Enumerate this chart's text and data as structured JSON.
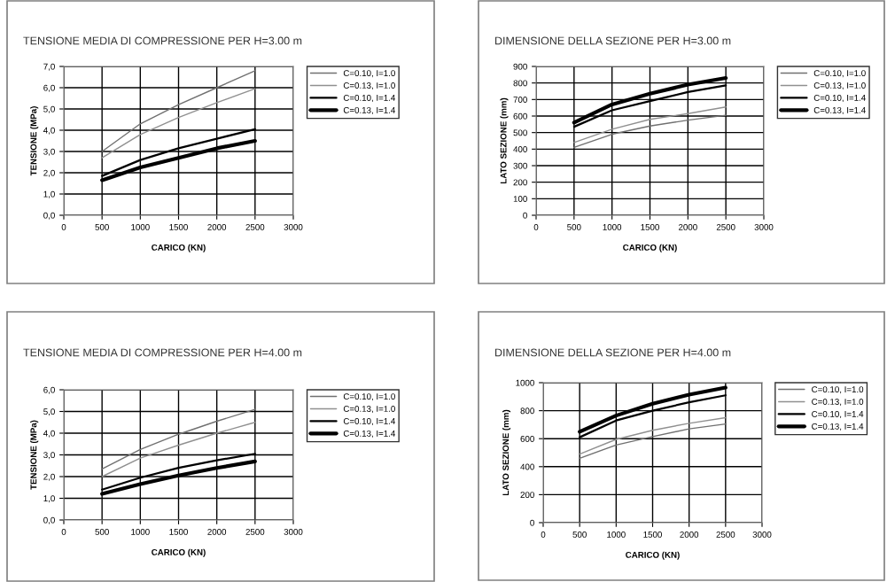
{
  "chart_data": [
    {
      "type": "line",
      "title": "TENSIONE MEDIA DI COMPRESSIONE PER H=3.00 m",
      "xlabel": "CARICO (KN)",
      "ylabel": "TENSIONE (MPa)",
      "x": [
        500,
        1000,
        1500,
        2000,
        2500
      ],
      "xlim": [
        0,
        3000
      ],
      "xticks": [
        0,
        500,
        1000,
        1500,
        2000,
        2500,
        3000
      ],
      "ylim": [
        0,
        7
      ],
      "yticks": [
        {
          "value": 0,
          "label": "0,0"
        },
        {
          "value": 1,
          "label": "1,0"
        },
        {
          "value": 2,
          "label": "2,0"
        },
        {
          "value": 3,
          "label": "3,0"
        },
        {
          "value": 4,
          "label": "4,0"
        },
        {
          "value": 5,
          "label": "5,0"
        },
        {
          "value": 6,
          "label": "6,0"
        },
        {
          "value": 7,
          "label": "7,0"
        }
      ],
      "grid": true,
      "legend": "right",
      "series": [
        {
          "name": "C=0.10, I=1.0",
          "color": "#707070",
          "values": [
            3.0,
            4.3,
            5.2,
            6.0,
            6.8
          ]
        },
        {
          "name": "C=0.13, I=1.0",
          "color": "#909090",
          "values": [
            2.7,
            3.8,
            4.6,
            5.3,
            5.95
          ]
        },
        {
          "name": "C=0.10, I=1.4",
          "color": "#000000",
          "values": [
            1.85,
            2.6,
            3.15,
            3.6,
            4.05
          ]
        },
        {
          "name": "C=0.13, I=1.4",
          "color": "#000000",
          "values": [
            1.65,
            2.25,
            2.7,
            3.15,
            3.5
          ]
        }
      ]
    },
    {
      "type": "line",
      "title": "DIMENSIONE DELLA SEZIONE PER H=3.00 m",
      "xlabel": "CARICO (KN)",
      "ylabel": "LATO SEZIONE (mm)",
      "x": [
        500,
        1000,
        1500,
        2000,
        2500
      ],
      "xlim": [
        0,
        3000
      ],
      "xticks": [
        0,
        500,
        1000,
        1500,
        2000,
        2500,
        3000
      ],
      "ylim": [
        0,
        900
      ],
      "yticks": [
        0,
        100,
        200,
        300,
        400,
        500,
        600,
        700,
        800,
        900
      ],
      "grid": true,
      "legend": "right",
      "series": [
        {
          "name": "C=0.10, I=1.0",
          "color": "#707070",
          "values": [
            410,
            490,
            540,
            575,
            605
          ]
        },
        {
          "name": "C=0.13, I=1.0",
          "color": "#909090",
          "values": [
            440,
            520,
            580,
            615,
            655
          ]
        },
        {
          "name": "C=0.10, I=1.4",
          "color": "#000000",
          "values": [
            535,
            635,
            690,
            745,
            785
          ]
        },
        {
          "name": "C=0.13, I=1.4",
          "color": "#000000",
          "values": [
            560,
            670,
            735,
            790,
            830
          ]
        }
      ]
    },
    {
      "type": "line",
      "title": "TENSIONE MEDIA DI COMPRESSIONE PER H=4.00 m",
      "xlabel": "CARICO (KN)",
      "ylabel": "TENSIONE (MPa)",
      "x": [
        500,
        1000,
        1500,
        2000,
        2500
      ],
      "xlim": [
        0,
        3000
      ],
      "xticks": [
        0,
        500,
        1000,
        1500,
        2000,
        2500,
        3000
      ],
      "ylim": [
        0,
        6
      ],
      "yticks": [
        {
          "value": 0,
          "label": "0,0"
        },
        {
          "value": 1,
          "label": "1,0"
        },
        {
          "value": 2,
          "label": "2,0"
        },
        {
          "value": 3,
          "label": "3,0"
        },
        {
          "value": 4,
          "label": "4,0"
        },
        {
          "value": 5,
          "label": "5,0"
        },
        {
          "value": 6,
          "label": "6,0"
        }
      ],
      "grid": true,
      "legend": "right",
      "series": [
        {
          "name": "C=0.10, I=1.0",
          "color": "#707070",
          "values": [
            2.35,
            3.25,
            3.95,
            4.55,
            5.1
          ]
        },
        {
          "name": "C=0.13, I=1.0",
          "color": "#909090",
          "values": [
            2.0,
            2.85,
            3.45,
            4.0,
            4.5
          ]
        },
        {
          "name": "C=0.10, I=1.4",
          "color": "#000000",
          "values": [
            1.4,
            1.95,
            2.4,
            2.75,
            3.05
          ]
        },
        {
          "name": "C=0.13, I=1.4",
          "color": "#000000",
          "values": [
            1.2,
            1.65,
            2.05,
            2.4,
            2.7
          ]
        }
      ]
    },
    {
      "type": "line",
      "title": "DIMENSIONE DELLA SEZIONE PER H=4.00 m",
      "xlabel": "CARICO (KN)",
      "ylabel": "LATO SEZIONE (mm)",
      "x": [
        500,
        1000,
        1500,
        2000,
        2500
      ],
      "xlim": [
        0,
        3000
      ],
      "xticks": [
        0,
        500,
        1000,
        1500,
        2000,
        2500,
        3000
      ],
      "ylim": [
        0,
        1000
      ],
      "yticks": [
        0,
        200,
        400,
        600,
        800,
        1000
      ],
      "grid": true,
      "legend": "right",
      "series": [
        {
          "name": "C=0.10, I=1.0",
          "color": "#707070",
          "values": [
            460,
            555,
            615,
            670,
            705
          ]
        },
        {
          "name": "C=0.13, I=1.0",
          "color": "#909090",
          "values": [
            490,
            595,
            660,
            710,
            750
          ]
        },
        {
          "name": "C=0.10, I=1.4",
          "color": "#000000",
          "values": [
            610,
            730,
            800,
            860,
            910
          ]
        },
        {
          "name": "C=0.13, I=1.4",
          "color": "#000000",
          "values": [
            650,
            765,
            850,
            915,
            965
          ]
        }
      ]
    }
  ]
}
